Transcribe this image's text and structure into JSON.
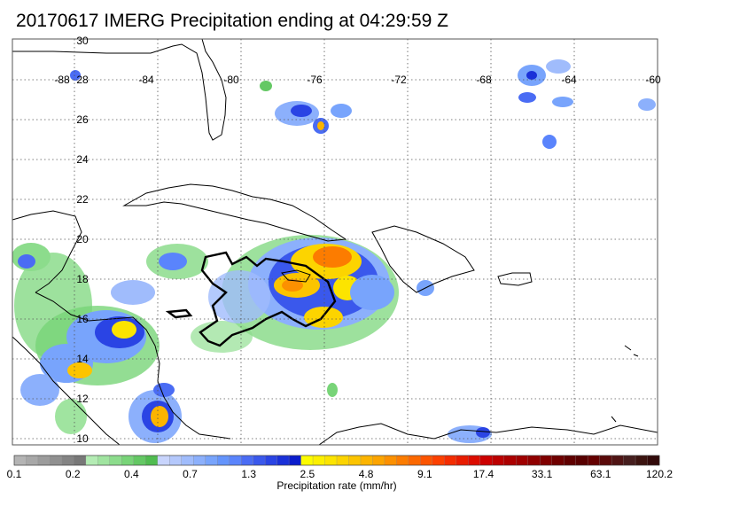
{
  "title": "20170617 IMERG Precipitation ending at 04:29:59 Z",
  "map": {
    "lon_labels": [
      "-88",
      "-84",
      "-80",
      "-76",
      "-72",
      "-68",
      "-64",
      "-60"
    ],
    "lat_labels": [
      "30",
      "28",
      "26",
      "24",
      "22",
      "20",
      "18",
      "16",
      "14",
      "12",
      "10"
    ],
    "lon_range": [
      -88,
      -60
    ],
    "lat_range": [
      10,
      30
    ]
  },
  "colorbar": {
    "tick_labels": [
      "0.1",
      "0.2",
      "0.4",
      "0.7",
      "1.3",
      "2.5",
      "4.8",
      "9.1",
      "17.4",
      "33.1",
      "63.1",
      "120.2"
    ],
    "label": "Precipitation rate (mm/hr)",
    "group_colors": [
      [
        "#b4b4b4",
        "#a8a8a8",
        "#9c9c9c",
        "#909090",
        "#848484",
        "#787878"
      ],
      [
        "#b4ecb4",
        "#a0e4a0",
        "#8cdc8c",
        "#78d478",
        "#64c864",
        "#50bc50"
      ],
      [
        "#c8d4fc",
        "#b4c8fc",
        "#a0bcfc",
        "#8cb0fc",
        "#78a4fc",
        "#6494fc"
      ],
      [
        "#5a84fc",
        "#4a6cf4",
        "#3a58ec",
        "#2a44e4",
        "#1a30d8",
        "#0a1ccc"
      ],
      [
        "#fcfc00",
        "#fcf000",
        "#fce400",
        "#fcd400",
        "#fcc400",
        "#fcb400"
      ],
      [
        "#fca400",
        "#fc9000",
        "#fc7c00",
        "#fc6800",
        "#fc5400",
        "#fc4000"
      ],
      [
        "#f42c00",
        "#e81c00",
        "#dc0c00",
        "#cc0000",
        "#bc0000",
        "#ac0000"
      ],
      [
        "#a00000",
        "#900000",
        "#800000",
        "#700000",
        "#600000",
        "#580000"
      ],
      [
        "#640000",
        "#5a0a0a",
        "#501414",
        "#461e1e",
        "#3c1410",
        "#320a0a"
      ]
    ]
  }
}
